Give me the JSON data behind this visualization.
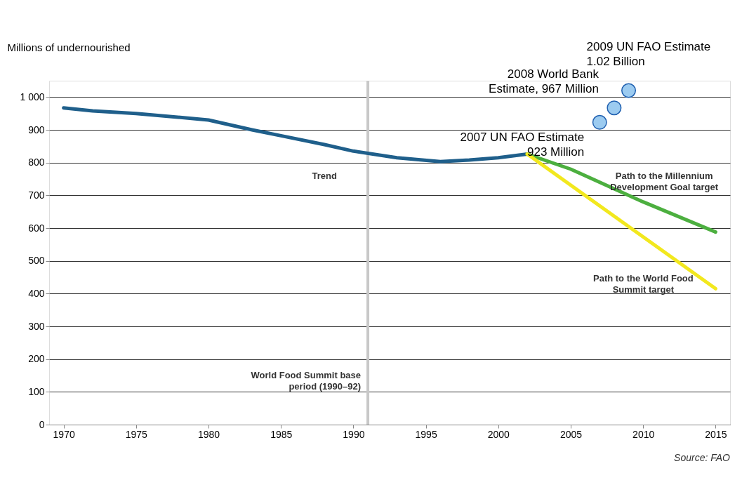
{
  "chart_data": {
    "type": "line",
    "ylabel": "Millions of undernourished",
    "xlim": [
      1969,
      2016
    ],
    "xticks": [
      1970,
      1975,
      1980,
      1985,
      1990,
      1995,
      2000,
      2005,
      2010,
      2015
    ],
    "ylim": [
      0,
      1050
    ],
    "yticks": [
      0,
      100,
      200,
      300,
      400,
      500,
      600,
      700,
      800,
      900,
      {
        "value": 1000,
        "label": "1 000"
      }
    ],
    "grid": "y",
    "series": [
      {
        "name": "Trend",
        "type": "line",
        "color": "#1f5f8b",
        "x": [
          1970,
          1972,
          1975,
          1980,
          1983,
          1985,
          1988,
          1990,
          1993,
          1996,
          1998,
          2000,
          2002
        ],
        "values": [
          967,
          958,
          950,
          930,
          900,
          882,
          855,
          835,
          815,
          803,
          808,
          815,
          826
        ]
      },
      {
        "name": "Path to the Millennium Development Goal target",
        "type": "line",
        "color": "#4caf3f",
        "x": [
          2002,
          2005,
          2010,
          2015
        ],
        "values": [
          826,
          780,
          680,
          588
        ]
      },
      {
        "name": "Path to the World Food Summit target",
        "type": "line",
        "color": "#f2e81e",
        "x": [
          2002,
          2015
        ],
        "values": [
          826,
          415
        ]
      },
      {
        "type": "scatter",
        "marker": "circle",
        "color": "#9ccbf0",
        "x": [
          2007,
          2008,
          2009
        ],
        "values": [
          923,
          967,
          1020
        ]
      }
    ],
    "ref_lines": [
      {
        "axis": "x",
        "value": 1991,
        "label": "World Food Summit base period (1990–92)",
        "color": "#c8c8c8"
      }
    ],
    "annotations": [
      {
        "text": "2008 World Bank Estimate, 967 Million",
        "x": 2008,
        "y": 967
      },
      {
        "text": "2007 UN FAO Estimate 923 Million",
        "x": 2007,
        "y": 923
      },
      {
        "text": "2009 UN FAO Estimate 1.02 Billion",
        "x": 2009,
        "y": 1020
      },
      "Source: FAO"
    ]
  }
}
